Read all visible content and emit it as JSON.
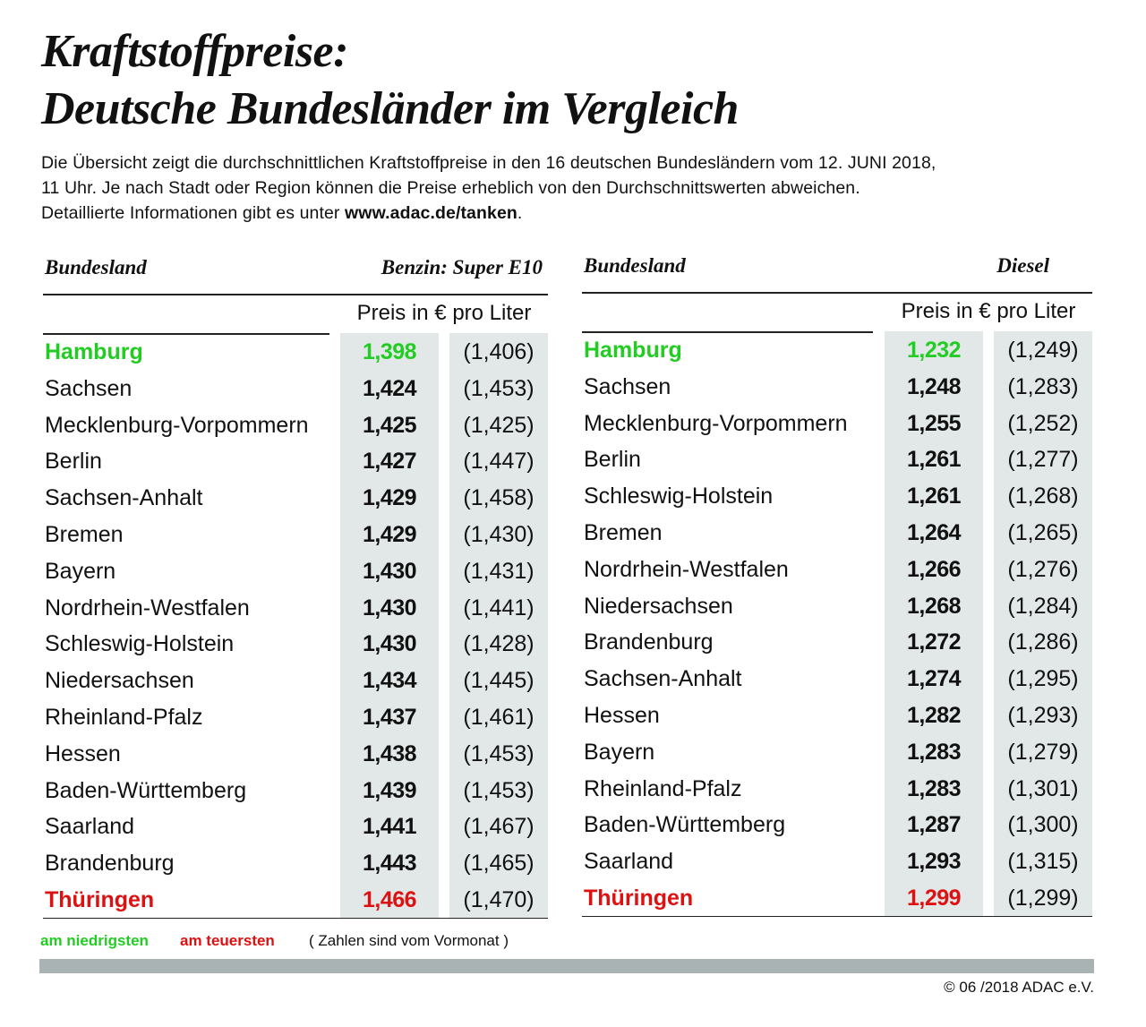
{
  "title_line1": "Kraftstoffpreise:",
  "title_line2": "Deutsche Bundesländer im Vergleich",
  "intro_line1": "Die Übersicht zeigt die durchschnittlichen Kraftstoffpreise in den 16 deutschen Bundesländern vom 12. JUNI 2018,",
  "intro_line2": "11 Uhr. Je nach Stadt oder Region können die Preise erheblich von den Durchschnittswerten abweichen.",
  "intro_line3_prefix": "Detaillierte Informationen gibt es unter ",
  "intro_link": "www.adac.de/tanken",
  "intro_line3_suffix": ".",
  "colors": {
    "lowest": "#22cc22",
    "highest": "#dd1111",
    "shade": "#e2e8e8",
    "bar": "#a9b3b3"
  },
  "chart_data": [
    {
      "type": "table",
      "column_header": "Bundesland",
      "fuel": "Benzin:  Super E10",
      "unit": "Preis in € pro Liter",
      "rows": [
        [
          "Hamburg",
          "1,398",
          "(1,406)"
        ],
        [
          "Sachsen",
          "1,424",
          "(1,453)"
        ],
        [
          "Mecklenburg-Vorpommern",
          "1,425",
          "(1,425)"
        ],
        [
          "Berlin",
          "1,427",
          "(1,447)"
        ],
        [
          "Sachsen-Anhalt",
          "1,429",
          "(1,458)"
        ],
        [
          "Bremen",
          "1,429",
          "(1,430)"
        ],
        [
          "Bayern",
          "1,430",
          "(1,431)"
        ],
        [
          "Nordrhein-Westfalen",
          "1,430",
          "(1,441)"
        ],
        [
          "Schleswig-Holstein",
          "1,430",
          "(1,428)"
        ],
        [
          "Niedersachsen",
          "1,434",
          "(1,445)"
        ],
        [
          "Rheinland-Pfalz",
          "1,437",
          "(1,461)"
        ],
        [
          "Hessen",
          "1,438",
          "(1,453)"
        ],
        [
          "Baden-Württemberg",
          "1,439",
          "(1,453)"
        ],
        [
          "Saarland",
          "1,441",
          "(1,467)"
        ],
        [
          "Brandenburg",
          "1,443",
          "(1,465)"
        ],
        [
          "Thüringen",
          "1,466",
          "(1,470)"
        ]
      ]
    },
    {
      "type": "table",
      "column_header": "Bundesland",
      "fuel": "Diesel",
      "unit": "Preis in € pro Liter",
      "rows": [
        [
          "Hamburg",
          "1,232",
          "(1,249)"
        ],
        [
          "Sachsen",
          "1,248",
          "(1,283)"
        ],
        [
          "Mecklenburg-Vorpommern",
          "1,255",
          "(1,252)"
        ],
        [
          "Berlin",
          "1,261",
          "(1,277)"
        ],
        [
          "Schleswig-Holstein",
          "1,261",
          "(1,268)"
        ],
        [
          "Bremen",
          "1,264",
          "(1,265)"
        ],
        [
          "Nordrhein-Westfalen",
          "1,266",
          "(1,276)"
        ],
        [
          "Niedersachsen",
          "1,268",
          "(1,284)"
        ],
        [
          "Brandenburg",
          "1,272",
          "(1,286)"
        ],
        [
          "Sachsen-Anhalt",
          "1,274",
          "(1,295)"
        ],
        [
          "Hessen",
          "1,282",
          "(1,293)"
        ],
        [
          "Bayern",
          "1,283",
          "(1,279)"
        ],
        [
          "Rheinland-Pfalz",
          "1,283",
          "(1,301)"
        ],
        [
          "Baden-Württemberg",
          "1,287",
          "(1,300)"
        ],
        [
          "Saarland",
          "1,293",
          "(1,315)"
        ],
        [
          "Thüringen",
          "1,299",
          "(1,299)"
        ]
      ]
    }
  ],
  "legend": {
    "lowest": "am niedrigsten",
    "highest": "am teuersten",
    "note": "( Zahlen sind vom Vormonat )"
  },
  "copyright": "© 06 /2018 ADAC e.V."
}
